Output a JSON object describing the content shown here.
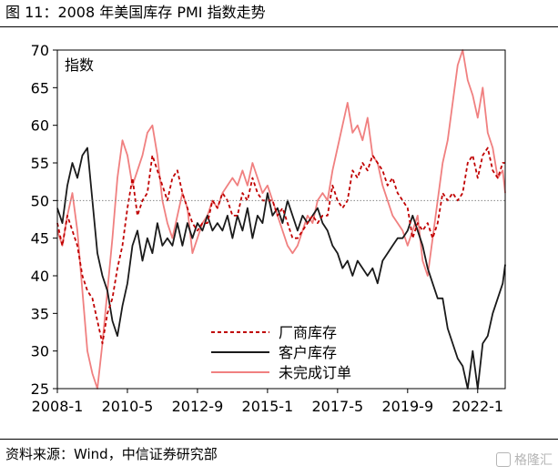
{
  "figure": {
    "title": "图 11：2008 年美国库存 PMI 指数走势",
    "source": "资料来源：Wind，中信证券研究部",
    "watermark": "格隆汇"
  },
  "chart_data": {
    "type": "line",
    "title": "图 11：2008 年美国库存 PMI 指数走势",
    "ylabel": "指数",
    "xlabel": "",
    "ylim": [
      25,
      70
    ],
    "yticks": [
      25,
      30,
      35,
      40,
      45,
      50,
      55,
      60,
      65,
      70
    ],
    "xlim": [
      "2008-01",
      "2022-12"
    ],
    "xticks": [
      "2008-1",
      "2010-5",
      "2012-9",
      "2015-1",
      "2017-5",
      "2019-9",
      "2022-1"
    ],
    "reference_line": 50,
    "legend_position": "bottom-center",
    "grid": false,
    "series": [
      {
        "name": "厂商库存",
        "style": "dashed",
        "color": "#c00000",
        "points": [
          [
            "2008-01",
            47
          ],
          [
            "2008-03",
            44
          ],
          [
            "2008-05",
            48
          ],
          [
            "2008-07",
            46
          ],
          [
            "2008-09",
            44
          ],
          [
            "2008-11",
            40
          ],
          [
            "2009-01",
            38
          ],
          [
            "2009-03",
            37
          ],
          [
            "2009-05",
            34
          ],
          [
            "2009-07",
            31
          ],
          [
            "2009-09",
            35
          ],
          [
            "2009-11",
            37
          ],
          [
            "2010-01",
            41
          ],
          [
            "2010-03",
            44
          ],
          [
            "2010-05",
            49
          ],
          [
            "2010-07",
            53
          ],
          [
            "2010-09",
            48
          ],
          [
            "2010-11",
            50
          ],
          [
            "2011-01",
            51
          ],
          [
            "2011-03",
            56
          ],
          [
            "2011-05",
            54
          ],
          [
            "2011-07",
            52
          ],
          [
            "2011-09",
            50
          ],
          [
            "2011-11",
            53
          ],
          [
            "2012-01",
            54
          ],
          [
            "2012-03",
            51
          ],
          [
            "2012-05",
            49
          ],
          [
            "2012-07",
            47
          ],
          [
            "2012-09",
            46
          ],
          [
            "2012-11",
            47
          ],
          [
            "2013-01",
            47
          ],
          [
            "2013-03",
            50
          ],
          [
            "2013-05",
            49
          ],
          [
            "2013-07",
            51
          ],
          [
            "2013-09",
            50
          ],
          [
            "2013-11",
            48
          ],
          [
            "2014-01",
            48
          ],
          [
            "2014-03",
            51
          ],
          [
            "2014-05",
            50
          ],
          [
            "2014-07",
            53
          ],
          [
            "2014-09",
            51
          ],
          [
            "2014-11",
            50
          ],
          [
            "2015-01",
            50
          ],
          [
            "2015-03",
            50
          ],
          [
            "2015-05",
            48
          ],
          [
            "2015-07",
            49
          ],
          [
            "2015-09",
            47
          ],
          [
            "2015-11",
            45
          ],
          [
            "2016-01",
            45
          ],
          [
            "2016-03",
            46
          ],
          [
            "2016-05",
            47
          ],
          [
            "2016-07",
            48
          ],
          [
            "2016-09",
            47
          ],
          [
            "2016-11",
            48
          ],
          [
            "2017-01",
            48
          ],
          [
            "2017-03",
            52
          ],
          [
            "2017-05",
            50
          ],
          [
            "2017-07",
            49
          ],
          [
            "2017-09",
            50
          ],
          [
            "2017-11",
            54
          ],
          [
            "2018-01",
            53
          ],
          [
            "2018-03",
            55
          ],
          [
            "2018-05",
            54
          ],
          [
            "2018-07",
            56
          ],
          [
            "2018-09",
            55
          ],
          [
            "2018-11",
            54
          ],
          [
            "2019-01",
            52
          ],
          [
            "2019-03",
            53
          ],
          [
            "2019-05",
            51
          ],
          [
            "2019-07",
            50
          ],
          [
            "2019-09",
            49
          ],
          [
            "2019-11",
            45
          ],
          [
            "2020-01",
            47
          ],
          [
            "2020-03",
            46
          ],
          [
            "2020-05",
            47
          ],
          [
            "2020-07",
            45
          ],
          [
            "2020-09",
            47
          ],
          [
            "2020-11",
            51
          ],
          [
            "2021-01",
            50
          ],
          [
            "2021-03",
            51
          ],
          [
            "2021-05",
            50
          ],
          [
            "2021-07",
            51
          ],
          [
            "2021-09",
            55
          ],
          [
            "2021-11",
            56
          ],
          [
            "2022-01",
            53
          ],
          [
            "2022-03",
            56
          ],
          [
            "2022-05",
            57
          ],
          [
            "2022-07",
            54
          ],
          [
            "2022-09",
            53
          ],
          [
            "2022-11",
            55
          ],
          [
            "2022-12",
            55
          ]
        ]
      },
      {
        "name": "客户库存",
        "style": "solid",
        "color": "#1a1a1a",
        "points": [
          [
            "2008-01",
            49
          ],
          [
            "2008-03",
            47
          ],
          [
            "2008-05",
            52
          ],
          [
            "2008-07",
            55
          ],
          [
            "2008-09",
            53
          ],
          [
            "2008-11",
            56
          ],
          [
            "2009-01",
            57
          ],
          [
            "2009-03",
            50
          ],
          [
            "2009-05",
            43
          ],
          [
            "2009-07",
            40
          ],
          [
            "2009-09",
            38
          ],
          [
            "2009-11",
            34
          ],
          [
            "2010-01",
            32
          ],
          [
            "2010-03",
            36
          ],
          [
            "2010-05",
            39
          ],
          [
            "2010-07",
            44
          ],
          [
            "2010-09",
            46
          ],
          [
            "2010-11",
            42
          ],
          [
            "2011-01",
            45
          ],
          [
            "2011-03",
            43
          ],
          [
            "2011-05",
            47
          ],
          [
            "2011-07",
            44
          ],
          [
            "2011-09",
            45
          ],
          [
            "2011-11",
            44
          ],
          [
            "2012-01",
            47
          ],
          [
            "2012-03",
            44
          ],
          [
            "2012-05",
            47
          ],
          [
            "2012-07",
            45
          ],
          [
            "2012-09",
            47
          ],
          [
            "2012-11",
            46
          ],
          [
            "2013-01",
            48
          ],
          [
            "2013-03",
            46
          ],
          [
            "2013-05",
            47
          ],
          [
            "2013-07",
            46
          ],
          [
            "2013-09",
            48
          ],
          [
            "2013-11",
            45
          ],
          [
            "2014-01",
            48
          ],
          [
            "2014-03",
            46
          ],
          [
            "2014-05",
            49
          ],
          [
            "2014-07",
            45
          ],
          [
            "2014-09",
            48
          ],
          [
            "2014-11",
            47
          ],
          [
            "2015-01",
            51
          ],
          [
            "2015-03",
            48
          ],
          [
            "2015-05",
            49
          ],
          [
            "2015-07",
            47
          ],
          [
            "2015-09",
            50
          ],
          [
            "2015-11",
            48
          ],
          [
            "2016-01",
            46
          ],
          [
            "2016-03",
            48
          ],
          [
            "2016-05",
            47
          ],
          [
            "2016-07",
            48
          ],
          [
            "2016-09",
            49
          ],
          [
            "2016-11",
            47
          ],
          [
            "2017-01",
            46
          ],
          [
            "2017-03",
            44
          ],
          [
            "2017-05",
            43
          ],
          [
            "2017-07",
            41
          ],
          [
            "2017-09",
            42
          ],
          [
            "2017-11",
            40
          ],
          [
            "2018-01",
            42
          ],
          [
            "2018-03",
            41
          ],
          [
            "2018-05",
            40
          ],
          [
            "2018-07",
            41
          ],
          [
            "2018-09",
            39
          ],
          [
            "2018-11",
            42
          ],
          [
            "2019-01",
            43
          ],
          [
            "2019-03",
            44
          ],
          [
            "2019-05",
            45
          ],
          [
            "2019-07",
            45
          ],
          [
            "2019-09",
            46
          ],
          [
            "2019-11",
            48
          ],
          [
            "2020-01",
            46
          ],
          [
            "2020-03",
            44
          ],
          [
            "2020-05",
            41
          ],
          [
            "2020-07",
            39
          ],
          [
            "2020-09",
            37
          ],
          [
            "2020-11",
            37
          ],
          [
            "2021-01",
            33
          ],
          [
            "2021-03",
            31
          ],
          [
            "2021-05",
            29
          ],
          [
            "2021-07",
            28
          ],
          [
            "2021-09",
            25
          ],
          [
            "2021-11",
            30
          ],
          [
            "2022-01",
            25
          ],
          [
            "2022-03",
            31
          ],
          [
            "2022-05",
            32
          ],
          [
            "2022-07",
            35
          ],
          [
            "2022-09",
            37
          ],
          [
            "2022-11",
            39
          ],
          [
            "2022-12",
            41.5
          ]
        ]
      },
      {
        "name": "未完成订单",
        "style": "solid",
        "color": "#f08080",
        "points": [
          [
            "2008-01",
            46
          ],
          [
            "2008-03",
            44
          ],
          [
            "2008-05",
            48
          ],
          [
            "2008-07",
            51
          ],
          [
            "2008-09",
            46
          ],
          [
            "2008-11",
            38
          ],
          [
            "2009-01",
            30
          ],
          [
            "2009-03",
            27
          ],
          [
            "2009-05",
            25
          ],
          [
            "2009-07",
            31
          ],
          [
            "2009-09",
            38
          ],
          [
            "2009-11",
            45
          ],
          [
            "2010-01",
            53
          ],
          [
            "2010-03",
            58
          ],
          [
            "2010-05",
            56
          ],
          [
            "2010-07",
            52
          ],
          [
            "2010-09",
            54
          ],
          [
            "2010-11",
            56
          ],
          [
            "2011-01",
            59
          ],
          [
            "2011-03",
            60
          ],
          [
            "2011-05",
            56
          ],
          [
            "2011-07",
            50
          ],
          [
            "2011-09",
            47
          ],
          [
            "2011-11",
            45
          ],
          [
            "2012-01",
            48
          ],
          [
            "2012-03",
            51
          ],
          [
            "2012-05",
            49
          ],
          [
            "2012-07",
            43
          ],
          [
            "2012-09",
            45
          ],
          [
            "2012-11",
            47
          ],
          [
            "2013-01",
            48
          ],
          [
            "2013-03",
            50
          ],
          [
            "2013-05",
            49
          ],
          [
            "2013-07",
            51
          ],
          [
            "2013-09",
            52
          ],
          [
            "2013-11",
            53
          ],
          [
            "2014-01",
            52
          ],
          [
            "2014-03",
            54
          ],
          [
            "2014-05",
            52
          ],
          [
            "2014-07",
            55
          ],
          [
            "2014-09",
            53
          ],
          [
            "2014-11",
            51
          ],
          [
            "2015-01",
            52
          ],
          [
            "2015-03",
            50
          ],
          [
            "2015-05",
            48
          ],
          [
            "2015-07",
            46
          ],
          [
            "2015-09",
            44
          ],
          [
            "2015-11",
            43
          ],
          [
            "2016-01",
            44
          ],
          [
            "2016-03",
            46
          ],
          [
            "2016-05",
            48
          ],
          [
            "2016-07",
            47
          ],
          [
            "2016-09",
            50
          ],
          [
            "2016-11",
            51
          ],
          [
            "2017-01",
            50
          ],
          [
            "2017-03",
            54
          ],
          [
            "2017-05",
            57
          ],
          [
            "2017-07",
            60
          ],
          [
            "2017-09",
            63
          ],
          [
            "2017-11",
            59
          ],
          [
            "2018-01",
            60
          ],
          [
            "2018-03",
            58
          ],
          [
            "2018-05",
            61
          ],
          [
            "2018-07",
            56
          ],
          [
            "2018-09",
            55
          ],
          [
            "2018-11",
            52
          ],
          [
            "2019-01",
            50
          ],
          [
            "2019-03",
            48
          ],
          [
            "2019-05",
            47
          ],
          [
            "2019-07",
            46
          ],
          [
            "2019-09",
            44
          ],
          [
            "2019-11",
            46
          ],
          [
            "2020-01",
            48
          ],
          [
            "2020-03",
            42
          ],
          [
            "2020-05",
            40
          ],
          [
            "2020-07",
            45
          ],
          [
            "2020-09",
            50
          ],
          [
            "2020-11",
            55
          ],
          [
            "2021-01",
            58
          ],
          [
            "2021-03",
            63
          ],
          [
            "2021-05",
            68
          ],
          [
            "2021-07",
            70
          ],
          [
            "2021-09",
            66
          ],
          [
            "2021-11",
            64
          ],
          [
            "2022-01",
            61
          ],
          [
            "2022-03",
            65
          ],
          [
            "2022-05",
            59
          ],
          [
            "2022-07",
            57
          ],
          [
            "2022-09",
            53
          ],
          [
            "2022-11",
            54
          ],
          [
            "2022-12",
            51
          ]
        ]
      }
    ]
  }
}
